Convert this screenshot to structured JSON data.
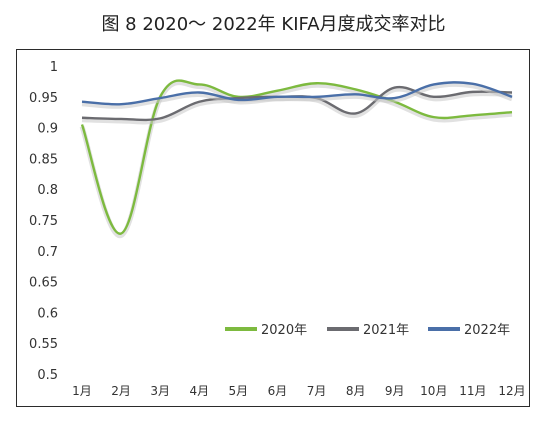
{
  "chart_data": {
    "type": "line",
    "title": "图 8  2020～ 2022年 KIFA月度成交率对比",
    "categories": [
      "1月",
      "2月",
      "3月",
      "4月",
      "5月",
      "6月",
      "7月",
      "8月",
      "9月",
      "10月",
      "11月",
      "12月"
    ],
    "ylim": [
      0.5,
      1.0
    ],
    "yticks": [
      "0.5",
      "0.55",
      "0.6",
      "0.65",
      "0.7",
      "0.75",
      "0.8",
      "0.85",
      "0.9",
      "0.95",
      "1"
    ],
    "grid": false,
    "legend_position": "bottom-right",
    "series": [
      {
        "name": "2020年",
        "color": "#7dba3f",
        "values": [
          0.905,
          0.728,
          0.95,
          0.97,
          0.95,
          0.96,
          0.972,
          0.962,
          0.942,
          0.917,
          0.92,
          0.925
        ]
      },
      {
        "name": "2021年",
        "color": "#6b6b70",
        "values": [
          0.916,
          0.914,
          0.915,
          0.942,
          0.948,
          0.95,
          0.948,
          0.923,
          0.965,
          0.95,
          0.958,
          0.957
        ]
      },
      {
        "name": "2022年",
        "color": "#4a6fa8",
        "values": [
          0.942,
          0.938,
          0.948,
          0.957,
          0.945,
          0.95,
          0.95,
          0.954,
          0.948,
          0.97,
          0.971,
          0.95
        ]
      }
    ]
  }
}
